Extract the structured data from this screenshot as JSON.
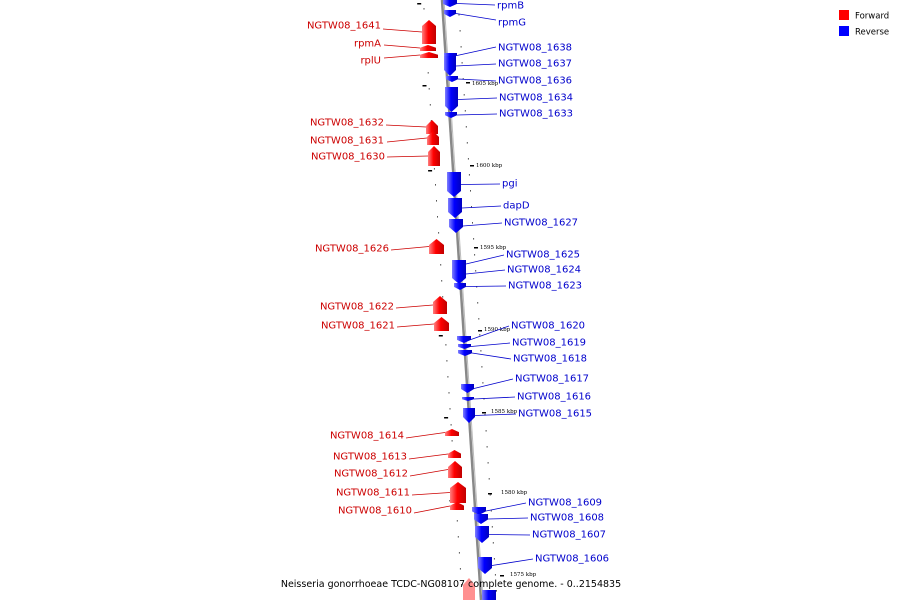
{
  "caption": "Neisseria gonorrhoeae TCDC-NG08107 complete genome. - 0..2154835",
  "legend": {
    "forward": {
      "label": "Forward",
      "color": "#ff0000"
    },
    "reverse": {
      "label": "Reverse",
      "color": "#0000ff"
    }
  },
  "colors": {
    "forward_label": "#cc0000",
    "reverse_label": "#0000cc",
    "forward_fill": "#ff0000",
    "reverse_fill": "#0000ff",
    "backbone": "#888888"
  },
  "scale": {
    "unit": "kbp",
    "ticks": [
      "1605 kbp",
      "1600 kbp",
      "1595 kbp",
      "1590 kbp",
      "1585 kbp",
      "1580 kbp",
      "1575 kbp"
    ]
  },
  "genes": {
    "forward": [
      "NGTW08_1641",
      "rpmA",
      "rplU",
      "NGTW08_1632",
      "NGTW08_1631",
      "NGTW08_1630",
      "NGTW08_1626",
      "NGTW08_1622",
      "NGTW08_1621",
      "NGTW08_1614",
      "NGTW08_1613",
      "NGTW08_1612",
      "NGTW08_1611",
      "NGTW08_1610"
    ],
    "reverse": [
      "rpmB",
      "rpmG",
      "NGTW08_1638",
      "NGTW08_1637",
      "NGTW08_1636",
      "NGTW08_1634",
      "NGTW08_1633",
      "pgi",
      "dapD",
      "NGTW08_1627",
      "NGTW08_1625",
      "NGTW08_1624",
      "NGTW08_1623",
      "NGTW08_1620",
      "NGTW08_1619",
      "NGTW08_1618",
      "NGTW08_1617",
      "NGTW08_1616",
      "NGTW08_1615",
      "NGTW08_1609",
      "NGTW08_1608",
      "NGTW08_1607",
      "NGTW08_1606"
    ]
  }
}
